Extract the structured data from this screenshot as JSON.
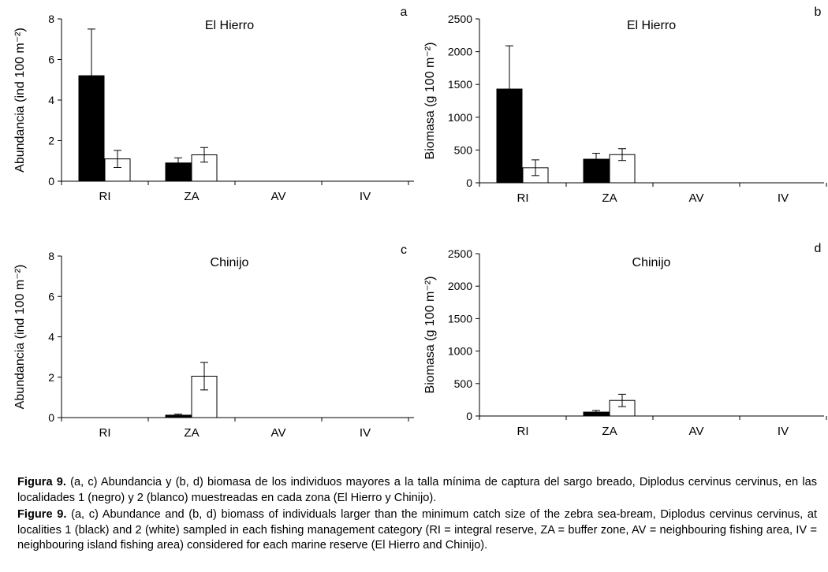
{
  "series_colors": {
    "locality1": "#000000",
    "locality2": "#ffffff"
  },
  "chart_data": [
    {
      "panel": "a",
      "type": "bar",
      "title": "El Hierro",
      "ylabel": "Abundancia (ind 100 m⁻²)",
      "categories": [
        "RI",
        "ZA",
        "AV",
        "IV"
      ],
      "ylim": [
        0,
        8
      ],
      "yticks": [
        0,
        2,
        4,
        6,
        8
      ],
      "series": [
        {
          "name": "Localidad 1 (negro)",
          "values": [
            5.2,
            0.9,
            0,
            0
          ],
          "errors": [
            2.3,
            0.25,
            0,
            0
          ]
        },
        {
          "name": "Localidad 2 (blanco)",
          "values": [
            1.1,
            1.3,
            0,
            0
          ],
          "errors": [
            0.42,
            0.36,
            0,
            0
          ]
        }
      ]
    },
    {
      "panel": "b",
      "type": "bar",
      "title": "El Hierro",
      "ylabel": "Biomasa (g 100 m⁻²)",
      "categories": [
        "RI",
        "ZA",
        "AV",
        "IV"
      ],
      "ylim": [
        0,
        2500
      ],
      "yticks": [
        0,
        500,
        1000,
        1500,
        2000,
        2500
      ],
      "series": [
        {
          "name": "Localidad 1 (negro)",
          "values": [
            1430,
            360,
            0,
            0
          ],
          "errors": [
            660,
            90,
            0,
            0
          ]
        },
        {
          "name": "Localidad 2 (blanco)",
          "values": [
            230,
            430,
            0,
            0
          ],
          "errors": [
            120,
            90,
            0,
            0
          ]
        }
      ]
    },
    {
      "panel": "c",
      "type": "bar",
      "title": "Chinijo",
      "ylabel": "Abundancia (ind 100 m⁻²)",
      "categories": [
        "RI",
        "ZA",
        "AV",
        "IV"
      ],
      "ylim": [
        0,
        8
      ],
      "yticks": [
        0,
        2,
        4,
        6,
        8
      ],
      "series": [
        {
          "name": "Localidad 1 (negro)",
          "values": [
            0,
            0.12,
            0,
            0
          ],
          "errors": [
            0,
            0.05,
            0,
            0
          ]
        },
        {
          "name": "Localidad 2 (blanco)",
          "values": [
            0,
            2.05,
            0,
            0
          ],
          "errors": [
            0,
            0.68,
            0,
            0
          ]
        }
      ]
    },
    {
      "panel": "d",
      "type": "bar",
      "title": "Chinijo",
      "ylabel": "Biomasa (g 100 m⁻²)",
      "categories": [
        "RI",
        "ZA",
        "AV",
        "IV"
      ],
      "ylim": [
        0,
        2500
      ],
      "yticks": [
        0,
        500,
        1000,
        1500,
        2000,
        2500
      ],
      "series": [
        {
          "name": "Localidad 1 (negro)",
          "values": [
            0,
            60,
            0,
            0
          ],
          "errors": [
            0,
            25,
            0,
            0
          ]
        },
        {
          "name": "Localidad 2 (blanco)",
          "values": [
            0,
            240,
            0,
            0
          ],
          "errors": [
            0,
            95,
            0,
            0
          ]
        }
      ]
    }
  ],
  "caption": {
    "es": {
      "label": "Figura 9.",
      "text": "(a, c) Abundancia y (b, d) biomasa de los individuos mayores a la talla mínima de captura del sargo breado, Diplodus cervinus cervinus, en las localidades 1 (negro) y 2 (blanco) muestreadas en cada zona (El Hierro y Chinijo)."
    },
    "en": {
      "label": "Figure 9.",
      "text": "(a, c) Abundance and (b, d) biomass of individuals larger than the minimum catch size of the zebra sea-bream, Diplodus cervinus cervinus, at localities 1 (black) and 2 (white) sampled in each fishing management category (RI = integral reserve, ZA = buffer zone, AV = neighbouring fishing area, IV = neighbouring island fishing area) considered for each marine reserve (El Hierro and Chinijo)."
    }
  }
}
